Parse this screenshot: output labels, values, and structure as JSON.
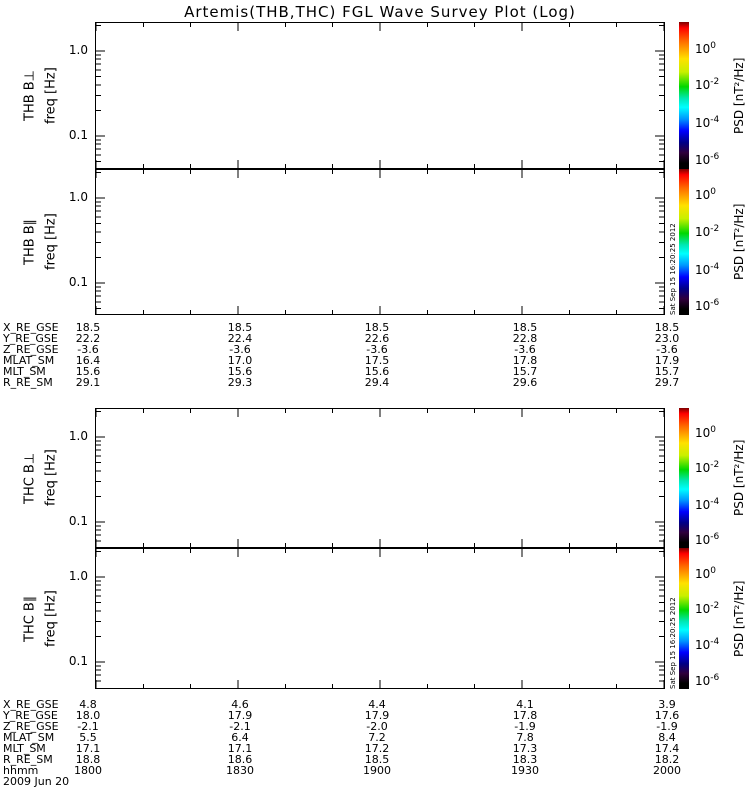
{
  "title": "Artemis(THB,THC) FGL Wave Survey Plot (Log)",
  "timestamp": "Sat Sep 15 16:20:25 2012",
  "panels": [
    {
      "label": "THB B⊥",
      "freq_label": "freq [Hz]",
      "ytick_top": "1.0",
      "ytick_bottom": "0.1"
    },
    {
      "label": "THB B∥",
      "freq_label": "freq [Hz]",
      "ytick_top": "1.0",
      "ytick_bottom": "0.1"
    },
    {
      "label": "THC B⊥",
      "freq_label": "freq [Hz]",
      "ytick_top": "1.0",
      "ytick_bottom": "0.1"
    },
    {
      "label": "THC B∥",
      "freq_label": "freq [Hz]",
      "ytick_top": "1.0",
      "ytick_bottom": "0.1"
    }
  ],
  "colorbar": {
    "axis_label": "PSD [nT²/Hz]",
    "ticks": [
      {
        "base": "10",
        "exp": "0"
      },
      {
        "base": "10",
        "exp": "-2"
      },
      {
        "base": "10",
        "exp": "-4"
      },
      {
        "base": "10",
        "exp": "-6"
      }
    ],
    "gradient": [
      "#7d0000",
      "#ff0000",
      "#ff6a00",
      "#ffe100",
      "#c8f000",
      "#00d800",
      "#00e8b4",
      "#00ffff",
      "#0096ff",
      "#0000ff",
      "#000087",
      "#30003c",
      "#000000"
    ]
  },
  "tables": [
    {
      "rows": [
        {
          "label": "X_RE_GSE",
          "values": [
            "18.5",
            "18.5",
            "18.5",
            "18.5",
            "18.5"
          ]
        },
        {
          "label": "Y_RE_GSE",
          "values": [
            "22.2",
            "22.4",
            "22.6",
            "22.8",
            "23.0"
          ]
        },
        {
          "label": "Z_RE_GSE",
          "values": [
            "-3.6",
            "-3.6",
            "-3.6",
            "-3.6",
            "-3.6"
          ]
        },
        {
          "label": "MLAT_SM",
          "values": [
            "16.4",
            "17.0",
            "17.5",
            "17.8",
            "17.9"
          ]
        },
        {
          "label": "MLT_SM",
          "values": [
            "15.6",
            "15.6",
            "15.6",
            "15.7",
            "15.7"
          ]
        },
        {
          "label": "R_RE_SM",
          "values": [
            "29.1",
            "29.3",
            "29.4",
            "29.6",
            "29.7"
          ]
        }
      ]
    },
    {
      "rows": [
        {
          "label": "X_RE_GSE",
          "values": [
            "4.8",
            "4.6",
            "4.4",
            "4.1",
            "3.9"
          ]
        },
        {
          "label": "Y_RE_GSE",
          "values": [
            "18.0",
            "17.9",
            "17.9",
            "17.8",
            "17.6"
          ]
        },
        {
          "label": "Z_RE_GSE",
          "values": [
            "-2.1",
            "-2.1",
            "-2.0",
            "-1.9",
            "-1.9"
          ]
        },
        {
          "label": "MLAT_SM",
          "values": [
            "5.5",
            "6.4",
            "7.2",
            "7.8",
            "8.4"
          ]
        },
        {
          "label": "MLT_SM",
          "values": [
            "17.1",
            "17.1",
            "17.2",
            "17.3",
            "17.4"
          ]
        },
        {
          "label": "R_RE_SM",
          "values": [
            "18.8",
            "18.6",
            "18.5",
            "18.3",
            "18.2"
          ]
        },
        {
          "label": "hhmm",
          "values": [
            "1800",
            "1830",
            "1900",
            "1930",
            "2000"
          ]
        }
      ],
      "date": "2009 Jun 20"
    }
  ],
  "chart_data": {
    "type": "heatmap",
    "title": "Artemis(THB,THC) FGL Wave Survey Plot (Log)",
    "panels": [
      {
        "name": "THB B⊥",
        "ylabel": "freq [Hz]",
        "yscale": "log",
        "ytick_values": [
          1.0,
          0.1
        ],
        "values": []
      },
      {
        "name": "THB B∥",
        "ylabel": "freq [Hz]",
        "yscale": "log",
        "ytick_values": [
          1.0,
          0.1
        ],
        "values": []
      },
      {
        "name": "THC B⊥",
        "ylabel": "freq [Hz]",
        "yscale": "log",
        "ytick_values": [
          1.0,
          0.1
        ],
        "values": []
      },
      {
        "name": "THC B∥",
        "ylabel": "freq [Hz]",
        "yscale": "log",
        "ytick_values": [
          1.0,
          0.1
        ],
        "values": []
      }
    ],
    "colorbar": {
      "label": "PSD [nT²/Hz]",
      "scale": "log",
      "tick_values": [
        1,
        0.01,
        0.0001,
        1e-06
      ]
    },
    "x_axis": {
      "label": "hhmm",
      "ticks": [
        1800,
        1830,
        1900,
        1930,
        2000
      ],
      "date": "2009 Jun 20"
    },
    "grid": false,
    "note": "spectrogram panels are blank (no PSD data rendered in the pixels)"
  }
}
